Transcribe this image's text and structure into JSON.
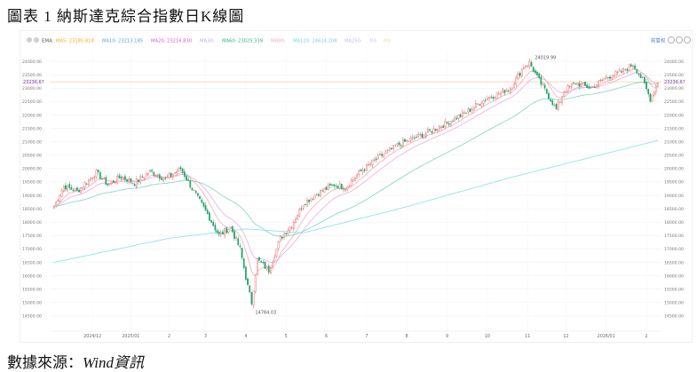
{
  "figure": {
    "title": "圖表 1 納斯達克綜合指數日K線圖",
    "source_label": "數據來源：",
    "source_name": "Wind資訊"
  },
  "toolbar": {
    "indicator": "EMA",
    "ma_items": [
      {
        "label": "MA5: 23185.818",
        "color": "#f5a623"
      },
      {
        "label": "MA10: 23213.185",
        "color": "#4aa3df"
      },
      {
        "label": "MA20: 23216.830",
        "color": "#d05bd0"
      },
      {
        "label": "MA30:",
        "color": "#b9a9e8"
      },
      {
        "label": "MA60: 23025.339",
        "color": "#2ab07a"
      },
      {
        "label": "MA90:",
        "color": "#f2a0c8"
      },
      {
        "label": "MA120: 24624.208",
        "color": "#6fd3e0"
      },
      {
        "label": "MA250:",
        "color": "#c8b8f0"
      },
      {
        "label": "MA",
        "color": "#d8c8f8"
      },
      {
        "label": "MA",
        "color": "#f2dfa6"
      }
    ],
    "right_label": "前复权"
  },
  "annotations": {
    "high_label": "24019.99",
    "low_label": "14784.03",
    "current_price": "23236.67"
  },
  "colors": {
    "up": "#e8565a",
    "down": "#21a366",
    "ma_short": "#f2a0a8",
    "ma_mid": "#e8a0e0",
    "ma_long": "#7cd6c0",
    "ma_longest": "#8fe3ee",
    "price_line": "#f0b27a"
  },
  "chart_data": {
    "type": "candlestick",
    "title": "",
    "ylim": [
      14000,
      24400
    ],
    "yticks": [
      14500,
      15000,
      15500,
      16000,
      16500,
      17000,
      17500,
      18000,
      18500,
      19000,
      19500,
      20000,
      20500,
      21000,
      21500,
      22000,
      22500,
      23000,
      23500,
      24000
    ],
    "ytick_labels": [
      "14500.00",
      "15000.00",
      "15500.00",
      "16000.00",
      "16500.00",
      "17000.00",
      "17500.00",
      "18000.00",
      "18500.00",
      "19000.00",
      "19500.00",
      "20000.00",
      "20500.00",
      "21000.00",
      "21500.00",
      "22000.00",
      "22500.00",
      "23000.00",
      "23500.00",
      "24000.00"
    ],
    "xticks": [
      {
        "label": "2024/12",
        "day": 20
      },
      {
        "label": "2025/01",
        "day": 40
      },
      {
        "label": "2",
        "day": 60
      },
      {
        "label": "3",
        "day": 79
      },
      {
        "label": "4",
        "day": 100
      },
      {
        "label": "5",
        "day": 121
      },
      {
        "label": "6",
        "day": 142
      },
      {
        "label": "7",
        "day": 163
      },
      {
        "label": "8",
        "day": 184
      },
      {
        "label": "9",
        "day": 205
      },
      {
        "label": "10",
        "day": 226
      },
      {
        "label": "11",
        "day": 247
      },
      {
        "label": "12",
        "day": 267
      },
      {
        "label": "2026/01",
        "day": 288
      },
      {
        "label": "2",
        "day": 309
      }
    ],
    "n_days": 316,
    "anchors": [
      {
        "day": 0,
        "close": 18600
      },
      {
        "day": 5,
        "close": 19350
      },
      {
        "day": 12,
        "close": 19150
      },
      {
        "day": 22,
        "close": 19850
      },
      {
        "day": 28,
        "close": 19400
      },
      {
        "day": 35,
        "close": 19700
      },
      {
        "day": 42,
        "close": 19450
      },
      {
        "day": 50,
        "close": 19900
      },
      {
        "day": 58,
        "close": 19600
      },
      {
        "day": 66,
        "close": 20000
      },
      {
        "day": 72,
        "close": 19250
      },
      {
        "day": 80,
        "close": 18300
      },
      {
        "day": 86,
        "close": 17500
      },
      {
        "day": 92,
        "close": 17800
      },
      {
        "day": 97,
        "close": 17000
      },
      {
        "day": 101,
        "close": 15600
      },
      {
        "day": 103,
        "close": 15000
      },
      {
        "day": 106,
        "close": 16600
      },
      {
        "day": 112,
        "close": 16200
      },
      {
        "day": 118,
        "close": 17400
      },
      {
        "day": 124,
        "close": 17900
      },
      {
        "day": 130,
        "close": 18700
      },
      {
        "day": 138,
        "close": 19100
      },
      {
        "day": 146,
        "close": 19400
      },
      {
        "day": 152,
        "close": 19300
      },
      {
        "day": 160,
        "close": 19900
      },
      {
        "day": 170,
        "close": 20450
      },
      {
        "day": 180,
        "close": 20900
      },
      {
        "day": 190,
        "close": 21200
      },
      {
        "day": 198,
        "close": 21450
      },
      {
        "day": 205,
        "close": 21700
      },
      {
        "day": 215,
        "close": 22100
      },
      {
        "day": 225,
        "close": 22600
      },
      {
        "day": 232,
        "close": 22800
      },
      {
        "day": 238,
        "close": 23000
      },
      {
        "day": 245,
        "close": 23800
      },
      {
        "day": 248,
        "close": 23950
      },
      {
        "day": 252,
        "close": 23400
      },
      {
        "day": 258,
        "close": 22700
      },
      {
        "day": 262,
        "close": 22200
      },
      {
        "day": 266,
        "close": 22900
      },
      {
        "day": 272,
        "close": 23200
      },
      {
        "day": 280,
        "close": 23000
      },
      {
        "day": 288,
        "close": 23400
      },
      {
        "day": 296,
        "close": 23600
      },
      {
        "day": 302,
        "close": 23900
      },
      {
        "day": 307,
        "close": 23300
      },
      {
        "day": 311,
        "close": 22600
      },
      {
        "day": 315,
        "close": 23236
      }
    ],
    "ma_longest_anchors": [
      {
        "day": 0,
        "close": 16500
      },
      {
        "day": 60,
        "close": 17400
      },
      {
        "day": 100,
        "close": 17750
      },
      {
        "day": 130,
        "close": 17600
      },
      {
        "day": 180,
        "close": 18500
      },
      {
        "day": 240,
        "close": 19700
      },
      {
        "day": 315,
        "close": 21050
      }
    ]
  }
}
